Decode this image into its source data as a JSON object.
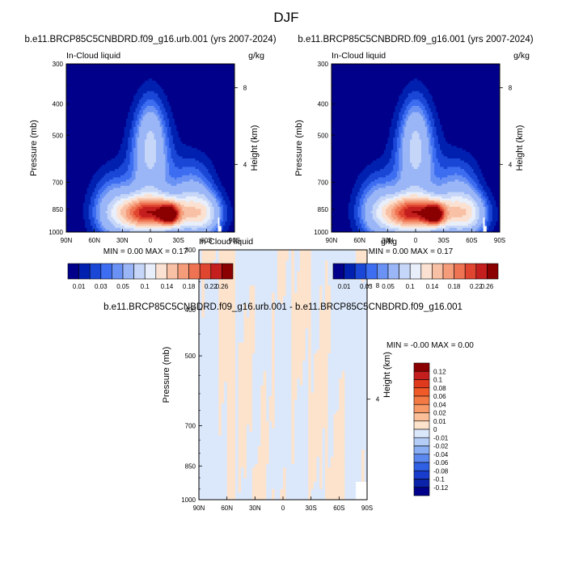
{
  "page_title": "DJF",
  "chart_data": [
    {
      "type": "contour",
      "title": "b.e11.BRCP85C5CNBDRD.f09_g16.urb.001 (yrs 2007-2024)",
      "left_label": "In-Cloud liquid",
      "right_label": "g/kg",
      "ylabel": "Pressure (mb)",
      "ylabel_right": "Height (km)",
      "x_ticks": [
        "90N",
        "60N",
        "30N",
        "0",
        "30S",
        "60S",
        "90S"
      ],
      "y_ticks": [
        "300",
        "400",
        "500",
        "700",
        "850",
        "1000"
      ],
      "y_tick_values": [
        300,
        400,
        500,
        700,
        850,
        1000
      ],
      "height_ticks": [
        "8",
        "4"
      ],
      "ylim": [
        1000,
        300
      ],
      "xlim": [
        90,
        -90
      ],
      "stats": "MIN =   0.00  MAX =   0.17",
      "min": 0.0,
      "max": 0.17,
      "peak": {
        "lat": -20,
        "pressure": 880
      }
    },
    {
      "type": "contour",
      "title": "b.e11.BRCP85C5CNBDRD.f09_g16.001 (yrs 2007-2024)",
      "left_label": "In-Cloud liquid",
      "right_label": "g/kg",
      "ylabel": "Pressure (mb)",
      "ylabel_right": "Height (km)",
      "x_ticks": [
        "90N",
        "60N",
        "30N",
        "0",
        "30S",
        "60S",
        "90S"
      ],
      "y_ticks": [
        "300",
        "400",
        "500",
        "700",
        "850",
        "1000"
      ],
      "y_tick_values": [
        300,
        400,
        500,
        700,
        850,
        1000
      ],
      "height_ticks": [
        "8",
        "4"
      ],
      "ylim": [
        1000,
        300
      ],
      "xlim": [
        90,
        -90
      ],
      "stats": "MIN =   0.00  MAX =   0.17",
      "min": 0.0,
      "max": 0.17,
      "peak": {
        "lat": -20,
        "pressure": 880
      }
    },
    {
      "type": "contour",
      "title": "b.e11.BRCP85C5CNBDRD.f09_g16.urb.001 - b.e11.BRCP85C5CNBDRD.f09_g16.001",
      "left_label": "In-Cloud liquid",
      "right_label": "g/kg",
      "ylabel": "Pressure (mb)",
      "ylabel_right": "Height (km)",
      "x_ticks": [
        "90N",
        "60N",
        "30N",
        "0",
        "30S",
        "60S",
        "90S"
      ],
      "y_ticks": [
        "300",
        "400",
        "500",
        "700",
        "850",
        "1000"
      ],
      "y_tick_values": [
        300,
        400,
        500,
        700,
        850,
        1000
      ],
      "height_ticks": [
        "8",
        "4"
      ],
      "ylim": [
        1000,
        300
      ],
      "xlim": [
        90,
        -90
      ],
      "stats": "MIN =  -0.00  MAX =   0.00",
      "min": -0.0,
      "max": 0.0
    }
  ],
  "colorbar_main": {
    "labels": [
      "0.01",
      "0.03",
      "0.05",
      "0.1",
      "0.14",
      "0.18",
      "0.22",
      "0.26"
    ],
    "colors": [
      "#00008b",
      "#0020b0",
      "#1a47d6",
      "#3d6df0",
      "#6a92f5",
      "#9ab6f7",
      "#c6d6f8",
      "#e8eefa",
      "#fbe1d1",
      "#f8c0a5",
      "#f59c7b",
      "#ee7352",
      "#e0452f",
      "#c41e1e",
      "#8b0000"
    ]
  },
  "colorbar_diff": {
    "labels": [
      "0.12",
      "0.1",
      "0.08",
      "0.06",
      "0.04",
      "0.02",
      "0.01",
      "0",
      "-0.01",
      "-0.02",
      "-0.04",
      "-0.06",
      "-0.08",
      "-0.1",
      "-0.12"
    ],
    "colors": [
      "#8b0000",
      "#c41e1e",
      "#e03a1e",
      "#f05a28",
      "#f47a45",
      "#f79a68",
      "#fabf98",
      "#fde3cc",
      "#dbe8fb",
      "#b4cdf7",
      "#8aaef3",
      "#5b88ee",
      "#2f5fe3",
      "#1a3ccc",
      "#0a23a8",
      "#00008b"
    ]
  }
}
